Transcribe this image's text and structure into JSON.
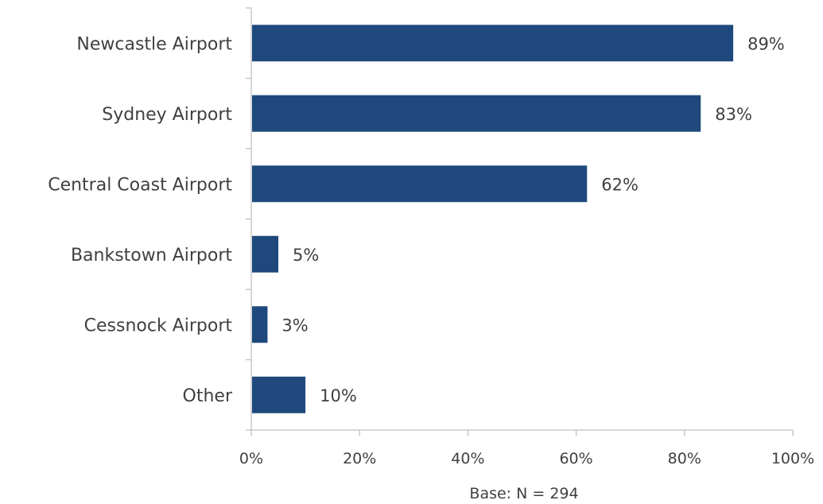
{
  "chart_data": {
    "type": "bar",
    "orientation": "horizontal",
    "categories": [
      "Newcastle Airport",
      "Sydney Airport",
      "Central Coast Airport",
      "Bankstown Airport",
      "Cessnock Airport",
      "Other"
    ],
    "values": [
      89,
      83,
      62,
      5,
      3,
      10
    ],
    "value_labels": [
      "89%",
      "83%",
      "62%",
      "5%",
      "3%",
      "10%"
    ],
    "x_ticks": [
      "0%",
      "20%",
      "40%",
      "60%",
      "80%",
      "100%"
    ],
    "xlim": [
      0,
      100
    ],
    "grid": false,
    "bar_color": "#1f497d",
    "note": "Base: N = 294"
  }
}
